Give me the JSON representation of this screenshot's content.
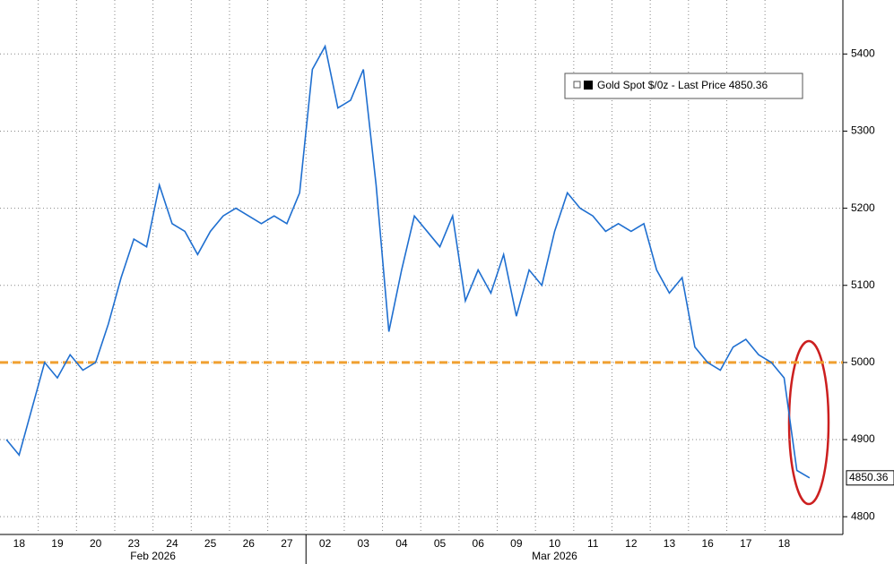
{
  "chart_data": {
    "type": "line",
    "categories": [
      null,
      "18",
      null,
      null,
      "19",
      null,
      null,
      "20",
      null,
      null,
      "23",
      null,
      null,
      "24",
      null,
      null,
      "25",
      null,
      null,
      "26",
      null,
      null,
      "27",
      null,
      null,
      "02",
      null,
      null,
      "03",
      null,
      null,
      "04",
      null,
      null,
      "05",
      null,
      null,
      "06",
      null,
      null,
      "09",
      null,
      null,
      "10",
      null,
      null,
      "11",
      null,
      null,
      "12",
      null,
      null,
      "13",
      null,
      null,
      "16",
      null,
      null,
      "17",
      null,
      null,
      "18",
      null,
      null
    ],
    "months": [
      "Feb 2026",
      "Mar 2026"
    ],
    "series": [
      {
        "name": "Gold Spot $/0z - Last Price 4850.36",
        "color": "#1f6fd0",
        "values": [
          4900,
          4880,
          4940,
          5000,
          4980,
          5010,
          4990,
          5000,
          5050,
          5110,
          5160,
          5150,
          5230,
          5180,
          5170,
          5140,
          5170,
          5190,
          5200,
          5190,
          5180,
          5190,
          5180,
          5220,
          5380,
          5410,
          5330,
          5340,
          5380,
          5230,
          5040,
          5120,
          5190,
          5170,
          5150,
          5190,
          5080,
          5120,
          5090,
          5140,
          5060,
          5120,
          5100,
          5170,
          5220,
          5200,
          5190,
          5170,
          5180,
          5170,
          5180,
          5120,
          5090,
          5110,
          5020,
          5000,
          4990,
          5020,
          5030,
          5010,
          5000,
          4980,
          4860,
          4850.36
        ]
      }
    ],
    "reference_line": {
      "value": 5000,
      "color": "#f0a030"
    },
    "ylim": [
      4777,
      5470
    ],
    "yticks": [
      4800,
      4900,
      5000,
      5100,
      5200,
      5300,
      5400
    ],
    "grid": true
  }
}
